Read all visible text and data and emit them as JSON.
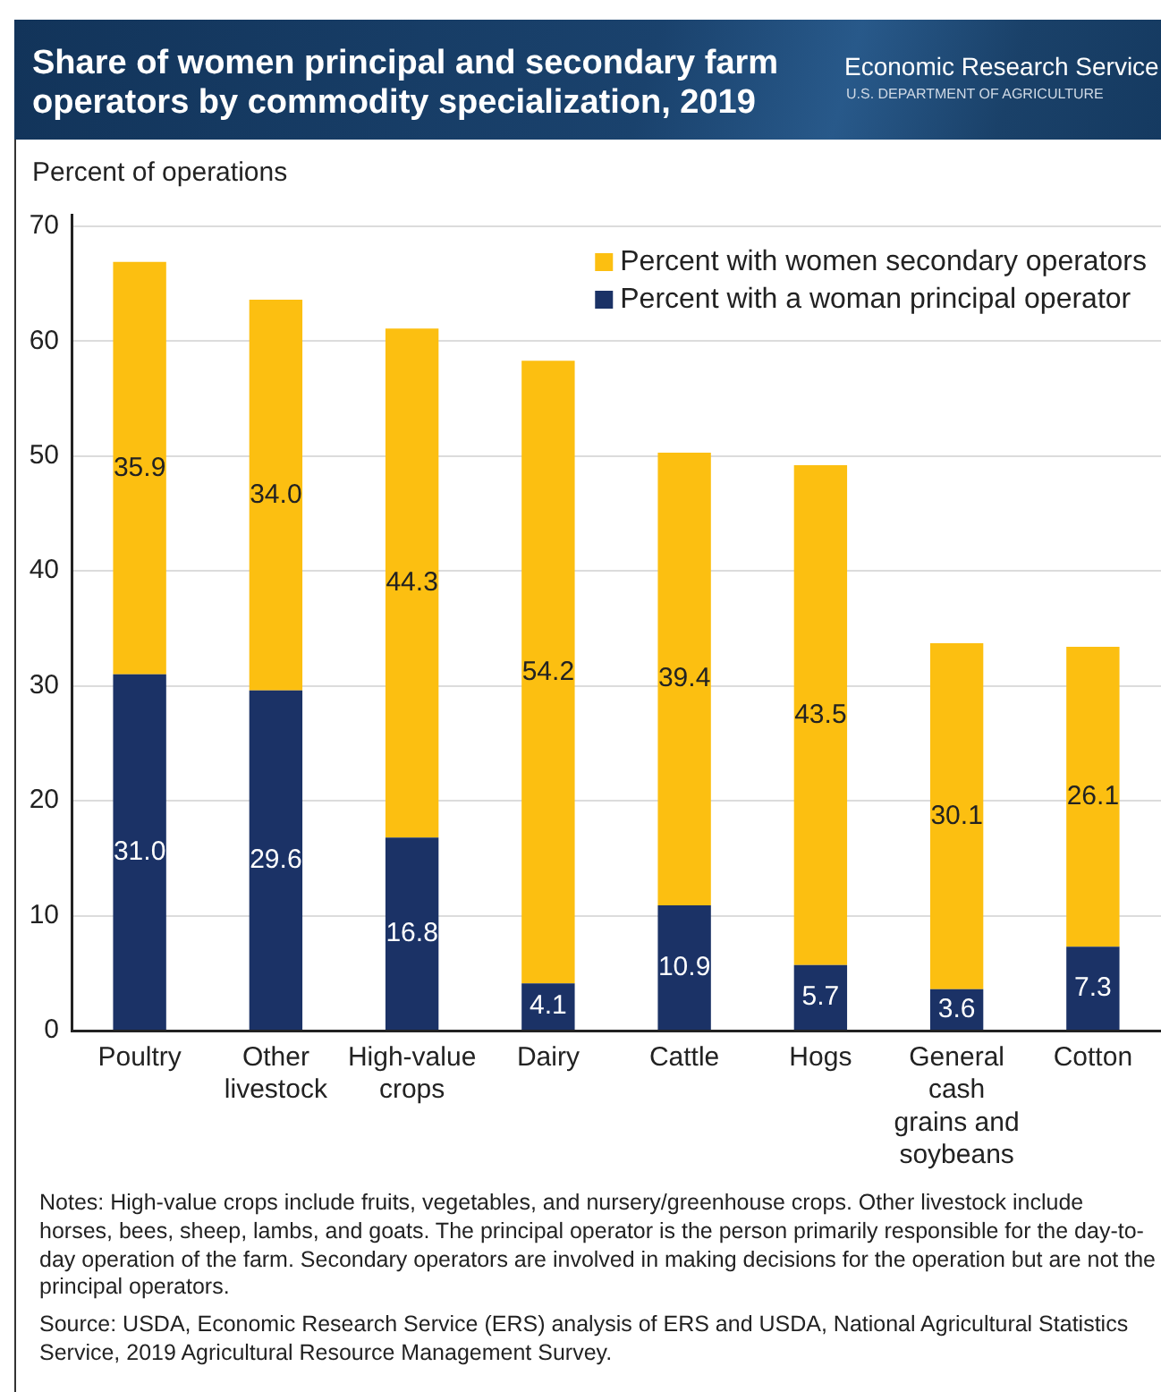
{
  "chart_data": {
    "type": "bar",
    "title": "Share of women principal and secondary farm operators by commodity specialization, 2019",
    "ylabel": "Percent of operations",
    "categories": [
      "Poultry",
      "Other livestock",
      "High-value crops",
      "Dairy",
      "Cattle",
      "Hogs",
      "General cash grains and soybeans",
      "Cotton"
    ],
    "series": [
      {
        "name": "Percent with a woman principal operator",
        "color": "#1b3266",
        "values": [
          31.0,
          29.6,
          16.8,
          4.1,
          10.9,
          5.7,
          3.6,
          7.3
        ],
        "value_labels": [
          "31.0",
          "29.6",
          "16.8",
          "4.1",
          "10.9",
          "5.7",
          "3.6",
          "7.3"
        ]
      },
      {
        "name": "Percent with women secondary operators",
        "color": "#fcbf11",
        "values": [
          35.9,
          34.0,
          44.3,
          54.2,
          39.4,
          43.5,
          30.1,
          26.1
        ],
        "value_labels": [
          "35.9",
          "34.0",
          "44.3",
          "54.2",
          "39.4",
          "43.5",
          "30.1",
          "26.1"
        ]
      }
    ],
    "stacked": true,
    "ylim": [
      0,
      71
    ],
    "yticks": [
      0,
      10,
      20,
      30,
      40,
      50,
      60,
      70
    ],
    "grid": "y",
    "legend": "top right",
    "annotations": [
      "Economic Research Service",
      "U.S. DEPARTMENT OF AGRICULTURE",
      "Notes: High-value crops include fruits, vegetables, and nursery/greenhouse crops. Other livestock include horses, bees, sheep, lambs, and goats. The principal operator is the person primarily responsible for the day-to-day operation of the farm. Secondary operators are involved in making decisions for the operation but are not the principal operators.",
      "Source: USDA, Economic Research Service (ERS) analysis of ERS and USDA, National Agricultural Statistics Service, 2019 Agricultural Resource Management Survey."
    ]
  }
}
